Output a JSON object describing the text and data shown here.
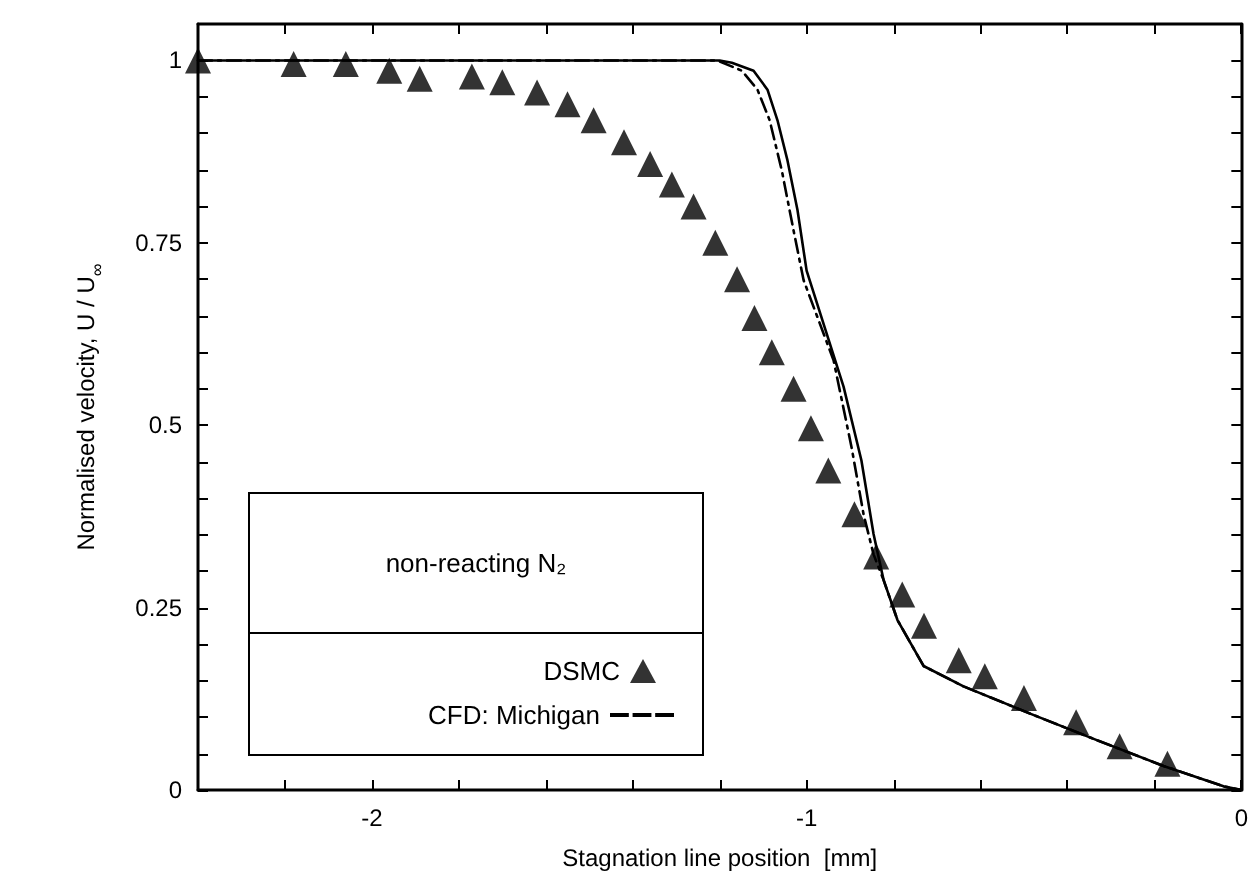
{
  "chart_data": {
    "type": "line",
    "xlabel": "Stagnation line position  [mm]",
    "ylabel": "Normalised velocity, U / U$_{∞}$",
    "legend_title": "non-reacting N₂",
    "legend": "bottom left",
    "xlim": [
      -2.4,
      0
    ],
    "ylim": [
      0,
      1.05
    ],
    "xticks": [
      {
        "value": -2.2,
        "label": null
      },
      -2,
      {
        "value": -1.8,
        "label": null
      },
      {
        "value": -1.6,
        "label": null
      },
      {
        "value": -1.4,
        "label": null
      },
      {
        "value": -1.2,
        "label": null
      },
      -1,
      {
        "value": -0.8,
        "label": null
      },
      {
        "value": -0.6,
        "label": null
      },
      {
        "value": -0.4,
        "label": null
      },
      {
        "value": -0.2,
        "label": null
      },
      0
    ],
    "yticks": [
      0,
      {
        "value": 0.05,
        "label": null
      },
      {
        "value": 0.1,
        "label": null
      },
      {
        "value": 0.15,
        "label": null
      },
      {
        "value": 0.2,
        "label": null
      },
      0.25,
      {
        "value": 0.3,
        "label": null
      },
      {
        "value": 0.35,
        "label": null
      },
      {
        "value": 0.4,
        "label": null
      },
      {
        "value": 0.45,
        "label": null
      },
      0.5,
      {
        "value": 0.55,
        "label": null
      },
      {
        "value": 0.6,
        "label": null
      },
      {
        "value": 0.65,
        "label": null
      },
      {
        "value": 0.7,
        "label": null
      },
      0.75,
      {
        "value": 0.8,
        "label": null
      },
      {
        "value": 0.85,
        "label": null
      },
      {
        "value": 0.9,
        "label": null
      },
      {
        "value": 0.95,
        "label": null
      },
      1
    ],
    "grid": false,
    "series": [
      {
        "name": "DSMC",
        "type": "scatter",
        "marker": "triangle",
        "color": "#000000",
        "x": [
          -2.4,
          -2.18,
          -2.06,
          -1.96,
          -1.89,
          -1.77,
          -1.7,
          -1.62,
          -1.55,
          -1.49,
          -1.42,
          -1.36,
          -1.31,
          -1.26,
          -1.21,
          -1.16,
          -1.12,
          -1.08,
          -1.03,
          -0.99,
          -0.95,
          -0.89,
          -0.84,
          -0.78,
          -0.73,
          -0.65,
          -0.59,
          -0.5,
          -0.38,
          -0.28,
          -0.17
        ],
        "values": [
          1.0,
          0.995,
          0.995,
          0.986,
          0.975,
          0.978,
          0.97,
          0.956,
          0.94,
          0.918,
          0.888,
          0.858,
          0.83,
          0.8,
          0.75,
          0.7,
          0.647,
          0.6,
          0.55,
          0.496,
          0.438,
          0.378,
          0.32,
          0.268,
          0.225,
          0.178,
          0.156,
          0.126,
          0.093,
          0.06,
          0.036
        ]
      },
      {
        "name": "CFD: Michigan",
        "type": "line",
        "line_style": "dashed",
        "marker": "none",
        "color": "#000000",
        "x": [
          -2.4,
          -1.205,
          -1.149,
          -1.113,
          -1.085,
          -1.057,
          -1.03,
          -1.007,
          -0.938,
          -0.897,
          -0.869,
          -0.846,
          -0.823,
          -0.791,
          -0.731,
          -0.639,
          -0.483,
          -0.331,
          -0.179,
          -0.041,
          0
        ],
        "values": [
          1.0,
          1.0,
          0.986,
          0.96,
          0.918,
          0.849,
          0.767,
          0.699,
          0.589,
          0.471,
          0.378,
          0.323,
          0.288,
          0.233,
          0.17,
          0.142,
          0.104,
          0.068,
          0.033,
          0.005,
          0
        ]
      },
      {
        "type": "line",
        "line_style": "solid",
        "marker": "none",
        "color": "#000000",
        "x": [
          -2.4,
          -1.2,
          -1.172,
          -1.122,
          -1.09,
          -1.067,
          -1.044,
          -1.021,
          -1.0,
          -0.915,
          -0.874,
          -0.846,
          -0.823,
          -0.791,
          -0.731,
          -0.639,
          -0.483,
          -0.331,
          -0.179,
          -0.041,
          0
        ],
        "values": [
          1.0,
          1.0,
          0.997,
          0.986,
          0.96,
          0.918,
          0.863,
          0.795,
          0.712,
          0.553,
          0.452,
          0.351,
          0.288,
          0.233,
          0.17,
          0.142,
          0.104,
          0.068,
          0.033,
          0.005,
          0
        ]
      }
    ]
  }
}
